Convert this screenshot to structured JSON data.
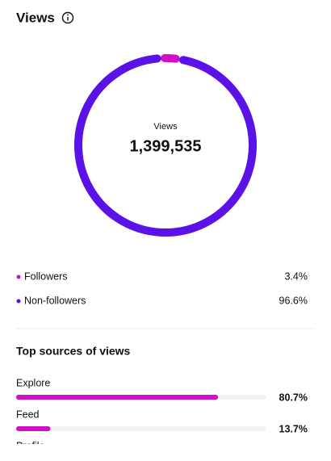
{
  "header": {
    "title": "Views"
  },
  "donut": {
    "label": "Views",
    "total": "1,399,535",
    "segments": [
      {
        "name": "Followers",
        "value": 3.4,
        "value_label": "3.4%",
        "color": "#d00fc6"
      },
      {
        "name": "Non-followers",
        "value": 96.6,
        "value_label": "96.6%",
        "color": "#5a12e6"
      }
    ]
  },
  "sources": {
    "title": "Top sources of views",
    "color": "#d00fc6",
    "items": [
      {
        "label": "Explore",
        "value": 80.7,
        "value_label": "80.7%"
      },
      {
        "label": "Feed",
        "value": 13.7,
        "value_label": "13.7%"
      },
      {
        "label": "Profile"
      }
    ]
  }
}
